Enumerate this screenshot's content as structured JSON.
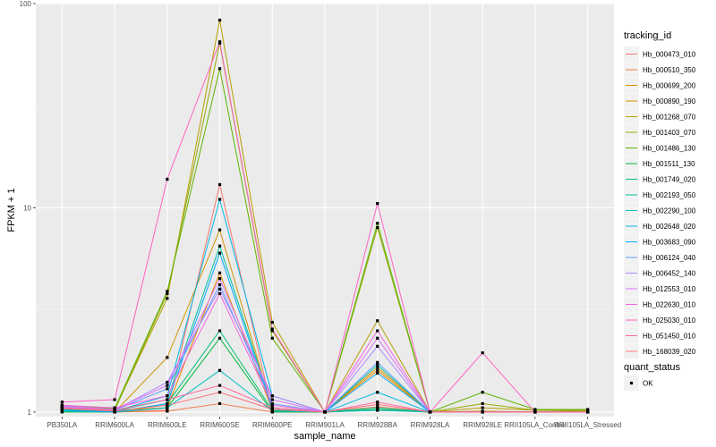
{
  "chart_data": {
    "type": "line",
    "xlabel": "sample_name",
    "ylabel": "FPKM + 1",
    "y_scale": "log10",
    "ylim": [
      0.95,
      100
    ],
    "y_ticks": [
      1,
      10,
      100
    ],
    "y_tick_labels": [
      "1",
      "10",
      "100"
    ],
    "grid": true,
    "legend_position": "right",
    "categories": [
      "PB350LA",
      "RRIM600LA",
      "RRIM600LE",
      "RRIM600SE",
      "RRIM600PE",
      "RRIM901LA",
      "RRIM928BA",
      "RRIM928LA",
      "RRIM928LE",
      "RRII105LA_Control",
      "RRII105LA_Stressed"
    ],
    "legend_title": "tracking_id",
    "shape_legend_title": "quant_status",
    "shape_legend_items": [
      "OK"
    ],
    "series": [
      {
        "name": "Hb_000473_010",
        "color": "#F8766D",
        "values": [
          1.02,
          1.0,
          1.02,
          13.0,
          1.01,
          1.0,
          1.06,
          1.0,
          1.0,
          1.0,
          1.0
        ]
      },
      {
        "name": "Hb_000510_350",
        "color": "#F07F4C",
        "values": [
          1.01,
          1.0,
          1.01,
          1.1,
          1.0,
          1.0,
          1.02,
          1.0,
          1.0,
          1.0,
          1.0
        ]
      },
      {
        "name": "Hb_000699_200",
        "color": "#E58700",
        "values": [
          1.03,
          1.02,
          1.05,
          4.8,
          1.02,
          1.0,
          1.6,
          1.0,
          1.0,
          1.0,
          1.0
        ]
      },
      {
        "name": "Hb_000890_190",
        "color": "#D29400",
        "values": [
          1.04,
          1.0,
          1.85,
          7.8,
          1.03,
          1.0,
          1.65,
          1.0,
          1.01,
          1.0,
          1.0
        ]
      },
      {
        "name": "Hb_001268_070",
        "color": "#B79F00",
        "values": [
          1.06,
          1.03,
          3.6,
          83.0,
          2.75,
          1.0,
          2.8,
          1.0,
          1.05,
          1.02,
          1.02
        ]
      },
      {
        "name": "Hb_001403_070",
        "color": "#93AA00",
        "values": [
          1.05,
          1.02,
          3.8,
          64.0,
          2.5,
          1.0,
          8.0,
          1.0,
          1.1,
          1.02,
          1.01
        ]
      },
      {
        "name": "Hb_001486_130",
        "color": "#5EB300",
        "values": [
          1.08,
          1.04,
          3.9,
          48.0,
          2.3,
          1.0,
          8.4,
          1.0,
          1.25,
          1.03,
          1.03
        ]
      },
      {
        "name": "Hb_001511_130",
        "color": "#00BA38",
        "values": [
          1.0,
          1.0,
          1.05,
          2.3,
          1.0,
          1.0,
          1.03,
          1.0,
          1.0,
          1.0,
          1.0
        ]
      },
      {
        "name": "Hb_001749_020",
        "color": "#00BF74",
        "values": [
          1.02,
          1.0,
          1.1,
          2.5,
          1.02,
          1.0,
          1.05,
          1.0,
          1.0,
          1.0,
          1.0
        ]
      },
      {
        "name": "Hb_002193_050",
        "color": "#00C19F",
        "values": [
          1.03,
          1.01,
          1.15,
          6.5,
          1.05,
          1.0,
          1.7,
          1.0,
          1.0,
          1.0,
          1.0
        ]
      },
      {
        "name": "Hb_002290_100",
        "color": "#00BFC4",
        "values": [
          1.01,
          1.0,
          1.05,
          1.6,
          1.01,
          1.0,
          1.02,
          1.0,
          1.0,
          1.0,
          1.0
        ]
      },
      {
        "name": "Hb_002648_020",
        "color": "#00B8E7",
        "values": [
          1.04,
          1.01,
          1.2,
          11.0,
          1.2,
          1.0,
          1.25,
          1.0,
          1.0,
          1.0,
          1.0
        ]
      },
      {
        "name": "Hb_003683_090",
        "color": "#00A9FF",
        "values": [
          1.02,
          1.0,
          1.1,
          6.0,
          1.03,
          1.0,
          1.55,
          1.0,
          1.0,
          1.0,
          1.0
        ]
      },
      {
        "name": "Hb_006124_040",
        "color": "#619CFF",
        "values": [
          1.05,
          1.02,
          1.3,
          4.2,
          1.1,
          1.0,
          1.75,
          1.0,
          1.0,
          1.0,
          1.0
        ]
      },
      {
        "name": "Hb_006452_140",
        "color": "#AE87FF",
        "values": [
          1.06,
          1.02,
          1.4,
          4.0,
          1.2,
          1.0,
          2.1,
          1.0,
          1.0,
          1.0,
          1.0
        ]
      },
      {
        "name": "Hb_012553_010",
        "color": "#DB72FB",
        "values": [
          1.07,
          1.03,
          1.35,
          4.5,
          1.15,
          1.0,
          2.3,
          1.0,
          1.0,
          1.0,
          1.0
        ]
      },
      {
        "name": "Hb_022630_010",
        "color": "#F564E3",
        "values": [
          1.08,
          1.05,
          1.2,
          3.8,
          1.08,
          1.0,
          2.5,
          1.0,
          1.0,
          1.0,
          1.0
        ]
      },
      {
        "name": "Hb_025030_010",
        "color": "#FF61C3",
        "values": [
          1.12,
          1.15,
          13.8,
          65.0,
          2.55,
          1.0,
          10.5,
          1.0,
          1.95,
          1.0,
          1.0
        ]
      },
      {
        "name": "Hb_051450_010",
        "color": "#FF689F",
        "values": [
          1.05,
          1.02,
          1.15,
          1.35,
          1.05,
          1.0,
          1.12,
          1.0,
          1.0,
          1.0,
          1.0
        ]
      },
      {
        "name": "Hb_168039_020",
        "color": "#FD7177",
        "values": [
          1.04,
          1.01,
          1.08,
          1.25,
          1.03,
          1.0,
          1.09,
          1.0,
          1.0,
          1.0,
          1.0
        ]
      }
    ]
  }
}
